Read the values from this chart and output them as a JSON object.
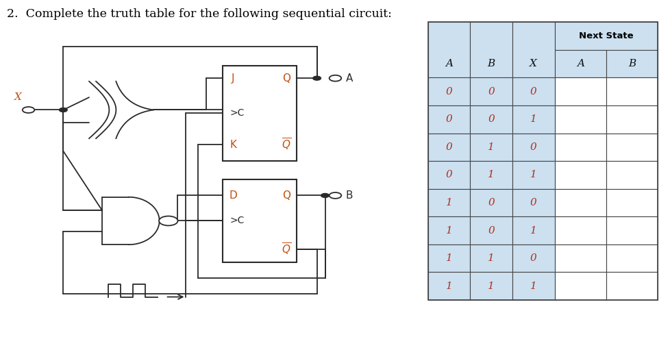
{
  "title": "2.  Complete the truth table for the following sequential circuit:",
  "title_color": "#000000",
  "title_fontsize": 12.5,
  "bg_color": "#ffffff",
  "table": {
    "header_bg": "#cce0f0",
    "cell_bg": "#ffffff",
    "border_color": "#444444",
    "text_color_header": "#000000",
    "text_color_data": "#b03020",
    "col_headers": [
      "A",
      "B",
      "X",
      "A",
      "B"
    ],
    "group_header": "Next State",
    "rows": [
      [
        0,
        0,
        0,
        "",
        ""
      ],
      [
        0,
        0,
        1,
        "",
        ""
      ],
      [
        0,
        1,
        0,
        "",
        ""
      ],
      [
        0,
        1,
        1,
        "",
        ""
      ],
      [
        1,
        0,
        0,
        "",
        ""
      ],
      [
        1,
        0,
        1,
        "",
        ""
      ],
      [
        1,
        1,
        0,
        "",
        ""
      ],
      [
        1,
        1,
        1,
        "",
        ""
      ]
    ]
  },
  "lc": "#2a2a2a",
  "lc_orange": "#c05010",
  "lw": 1.3,
  "dot_r": 0.006,
  "small_circle_r": 0.014
}
